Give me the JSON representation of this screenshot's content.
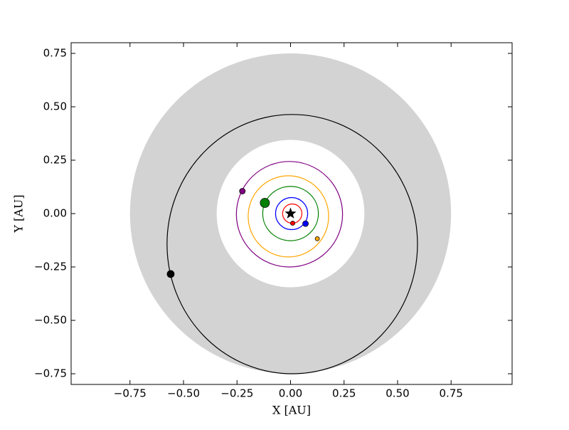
{
  "chart_data": {
    "type": "orbit",
    "xlabel": "X [AU]",
    "ylabel": "Y [AU]",
    "xlim": [
      -1.025,
      1.035
    ],
    "ylim": [
      -0.8,
      0.8
    ],
    "xticks": [
      {
        "value": -0.75,
        "label": "−0.75"
      },
      {
        "value": -0.5,
        "label": "−0.50"
      },
      {
        "value": -0.25,
        "label": "−0.25"
      },
      {
        "value": 0,
        "label": "0.00"
      },
      0.25,
      {
        "value": 0.5,
        "label": "0.50"
      },
      0.75
    ],
    "yticks": [
      {
        "value": -0.75,
        "label": "−0.75"
      },
      {
        "value": -0.5,
        "label": "−0.50"
      },
      {
        "value": -0.25,
        "label": "−0.25"
      },
      {
        "value": 0,
        "label": "0.00"
      },
      0.25,
      {
        "value": 0.5,
        "label": "0.50"
      },
      0.75
    ],
    "disk": {
      "inner": 0.345,
      "outer": 0.75,
      "color": "#d3d3d3"
    },
    "star": {
      "position": [
        0,
        0
      ],
      "color": "#000000"
    },
    "series": [
      {
        "color": "#ff0000",
        "center": [
          0.008,
          0
        ],
        "radius": [
          0.045,
          0.045
        ],
        "position": [
          0.01,
          -0.045
        ],
        "size": 3
      },
      {
        "color": "#0000ff",
        "center": [
          0.005,
          0
        ],
        "radius": [
          0.075,
          0.075
        ],
        "position": [
          0.07,
          -0.047
        ],
        "size": 4
      },
      {
        "color": "#008000",
        "center": [
          0,
          0
        ],
        "radius": [
          0.13,
          0.127
        ],
        "position": [
          -0.12,
          0.05
        ],
        "size": 6.5
      },
      {
        "color": "#ffa500",
        "center": [
          -0.01,
          -0.013
        ],
        "radius": [
          0.188,
          0.19
        ],
        "position": [
          0.125,
          -0.118
        ],
        "size": 3
      },
      {
        "color": "#800080",
        "center": [
          -0.005,
          -0.003
        ],
        "radius": [
          0.248,
          0.247
        ],
        "position": [
          -0.225,
          0.105
        ],
        "size": 4
      },
      {
        "color": "#000000",
        "center": [
          0.008,
          -0.143
        ],
        "radius": [
          0.585,
          0.607
        ],
        "position": [
          -0.56,
          -0.283
        ],
        "size": 5
      }
    ]
  }
}
